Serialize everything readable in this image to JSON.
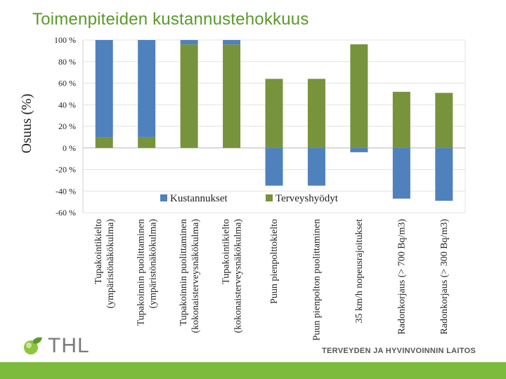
{
  "title": "Toimenpiteiden kustannustehokkuus",
  "footer": {
    "brand": "THL",
    "institute": "TERVEYDEN JA HYVINVOINNIN LAITOS"
  },
  "colors": {
    "costs": "#4f81bd",
    "benefits": "#77933c",
    "brand": "#5a9a2a",
    "bar": "#7dbb3c"
  },
  "chart_data": {
    "type": "bar",
    "stacked": true,
    "title": "",
    "xlabel": "",
    "ylabel": "Osuus (%)",
    "ylim": [
      -60,
      100
    ],
    "yticks": [
      -60,
      -40,
      -20,
      0,
      20,
      40,
      60,
      80,
      100
    ],
    "yticklabels": [
      "-60 %",
      "-40 %",
      "-20 %",
      "0 %",
      "20 %",
      "40 %",
      "60 %",
      "80 %",
      "100 %"
    ],
    "grid": true,
    "legend": "lower-center",
    "categories": [
      [
        "Tupakointikielto",
        "(ympäristönäkökulma)"
      ],
      [
        "Tupakoinnin puolittaminen",
        "(ympäristönäkökulma)"
      ],
      [
        "Tupakoinnin puolittaminen",
        "(kokonaisterveysnäkökulma)"
      ],
      [
        "Tupakointikielto",
        "(kokonaisterveysnäkökulma)"
      ],
      [
        "Puun pienpolttokielto"
      ],
      [
        "Puun pienpolton puolittaminen"
      ],
      [
        "35 km/h nopeusrajoitukset"
      ],
      [
        "Radonkorjaus (> 700 Bq/m3)"
      ],
      [
        "Radonkorjaus (> 300 Bq/m3)"
      ]
    ],
    "series": [
      {
        "name": "Kustannukset",
        "color": "#4f81bd",
        "values": [
          90,
          90,
          4,
          4,
          -35,
          -35,
          -4,
          -47,
          -49
        ]
      },
      {
        "name": "Terveyshyödyt",
        "color": "#77933c",
        "values": [
          10,
          10,
          96,
          96,
          64,
          64,
          96,
          52,
          51
        ]
      }
    ]
  }
}
